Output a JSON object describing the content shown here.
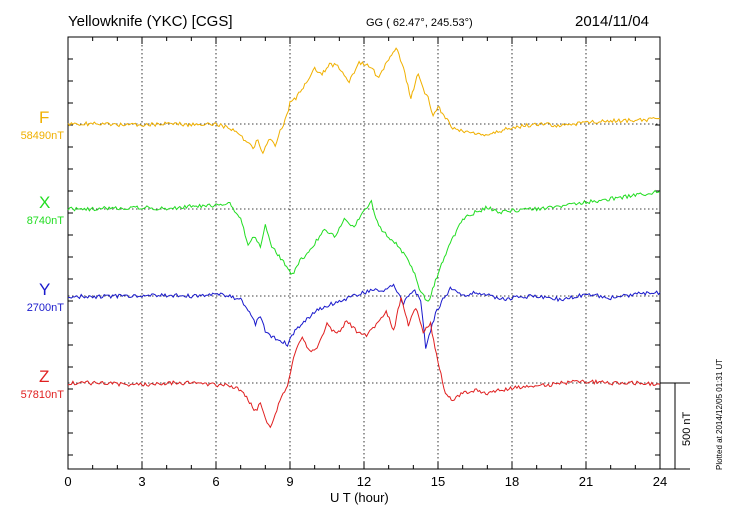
{
  "header": {
    "station": "Yellowknife (YKC)  [CGS]",
    "coords": "GG ( 62.47°, 245.53°)",
    "date": "2014/11/04"
  },
  "footnote": "Plotted at 2014/12/05 01:31  UT",
  "scale_label": "500 nT",
  "chart_data": {
    "type": "line",
    "xlabel": "U T (hour)",
    "xlim": [
      0,
      24
    ],
    "xticks": [
      "0",
      "3",
      "6",
      "9",
      "12",
      "15",
      "18",
      "21",
      "24"
    ],
    "units_per_row": "nT",
    "scale_bar_nT": 500,
    "grid": true,
    "series": [
      {
        "name": "F",
        "base_label": "58490nT",
        "color": "#f0b000",
        "x": [
          0,
          1,
          2,
          3,
          4,
          5,
          6,
          6.5,
          7,
          7.3,
          7.5,
          7.7,
          7.9,
          8.0,
          8.2,
          8.4,
          8.6,
          8.8,
          9.0,
          9.3,
          9.6,
          10.0,
          10.3,
          10.6,
          11.0,
          11.4,
          11.8,
          12.2,
          12.6,
          13.0,
          13.3,
          13.6,
          13.9,
          14.2,
          14.4,
          14.6,
          14.8,
          15.0,
          15.3,
          15.6,
          16.0,
          16.5,
          17.0,
          17.5,
          18.0,
          19,
          20,
          21,
          22,
          23,
          24
        ],
        "values": [
          0,
          0,
          -5,
          -3,
          0,
          -3,
          0,
          -20,
          -70,
          -110,
          -140,
          -90,
          -180,
          -140,
          -80,
          -120,
          -40,
          20,
          120,
          160,
          230,
          320,
          290,
          350,
          330,
          250,
          360,
          340,
          270,
          380,
          450,
          330,
          150,
          300,
          200,
          150,
          50,
          100,
          40,
          -20,
          -40,
          -50,
          -60,
          -40,
          -20,
          0,
          -10,
          10,
          20,
          20,
          30
        ]
      },
      {
        "name": "X",
        "base_label": "8740nT",
        "color": "#22dd22",
        "x": [
          0,
          1,
          2,
          3,
          4,
          5,
          6,
          6.5,
          7,
          7.3,
          7.6,
          7.8,
          8.0,
          8.2,
          8.5,
          8.8,
          9.1,
          9.4,
          9.7,
          10.0,
          10.4,
          10.8,
          11.2,
          11.6,
          12.0,
          12.3,
          12.6,
          13.0,
          13.3,
          13.6,
          14.0,
          14.3,
          14.6,
          14.9,
          15.2,
          15.5,
          16.0,
          16.5,
          17.0,
          17.5,
          18.0,
          19,
          20,
          21,
          22,
          23,
          24
        ],
        "values": [
          0,
          0,
          5,
          10,
          0,
          20,
          20,
          40,
          -60,
          -200,
          -160,
          -220,
          -80,
          -200,
          -260,
          -320,
          -380,
          -300,
          -260,
          -200,
          -120,
          -160,
          -60,
          -100,
          -10,
          40,
          -100,
          -160,
          -200,
          -260,
          -360,
          -480,
          -540,
          -420,
          -300,
          -200,
          -60,
          -20,
          10,
          -20,
          -10,
          0,
          20,
          40,
          60,
          80,
          100
        ]
      },
      {
        "name": "Y",
        "base_label": "2700nT",
        "color": "#1a1acc",
        "x": [
          0,
          1,
          2,
          3,
          4,
          5,
          6,
          6.5,
          7,
          7.3,
          7.6,
          7.8,
          8.0,
          8.3,
          8.6,
          8.9,
          9.2,
          9.5,
          9.8,
          10.1,
          10.4,
          10.8,
          11.2,
          11.6,
          12.0,
          12.4,
          12.8,
          13.2,
          13.6,
          14.0,
          14.3,
          14.5,
          14.7,
          14.9,
          15.2,
          15.5,
          16.0,
          16.5,
          17.0,
          17.5,
          18.0,
          19,
          20,
          21,
          22,
          23,
          24
        ],
        "values": [
          0,
          -5,
          0,
          0,
          5,
          0,
          10,
          0,
          -20,
          -80,
          -160,
          -120,
          -200,
          -240,
          -260,
          -280,
          -200,
          -160,
          -120,
          -80,
          -60,
          -40,
          -20,
          0,
          20,
          40,
          30,
          60,
          -40,
          40,
          -20,
          -300,
          -200,
          -100,
          -20,
          40,
          0,
          20,
          10,
          -20,
          -10,
          0,
          -20,
          10,
          -10,
          10,
          20
        ]
      },
      {
        "name": "Z",
        "base_label": "57810nT",
        "color": "#e02020",
        "x": [
          0,
          1,
          2,
          3,
          4,
          5,
          6,
          6.5,
          7,
          7.3,
          7.6,
          7.8,
          8.0,
          8.2,
          8.4,
          8.6,
          8.9,
          9.2,
          9.5,
          9.8,
          10.1,
          10.5,
          10.9,
          11.3,
          11.7,
          12.1,
          12.5,
          12.9,
          13.2,
          13.5,
          13.8,
          14.1,
          14.4,
          14.7,
          15.0,
          15.3,
          15.6,
          16.0,
          16.5,
          17.0,
          17.5,
          18.0,
          19,
          20,
          21,
          22,
          23,
          24
        ],
        "values": [
          0,
          0,
          -5,
          -10,
          0,
          0,
          -10,
          -10,
          -40,
          -100,
          -160,
          -120,
          -200,
          -260,
          -190,
          -100,
          -20,
          180,
          260,
          190,
          200,
          340,
          280,
          360,
          300,
          280,
          340,
          420,
          300,
          500,
          340,
          440,
          300,
          340,
          120,
          -60,
          -100,
          -60,
          -40,
          -60,
          -40,
          -30,
          -20,
          0,
          10,
          0,
          0,
          -10
        ]
      }
    ]
  }
}
